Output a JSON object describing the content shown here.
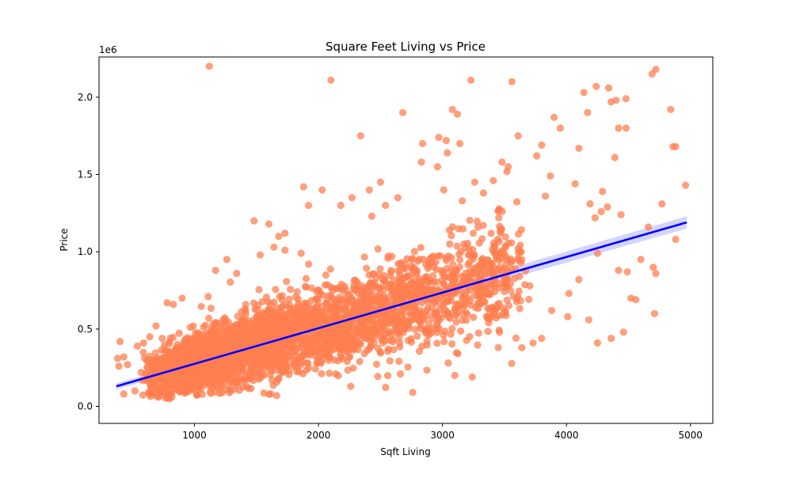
{
  "chart_data": {
    "type": "scatter",
    "title": "Square Feet Living vs Price",
    "xlabel": "Sqft Living",
    "ylabel": "Price",
    "y_offset_label": "1e6",
    "xlim": [
      230,
      5180
    ],
    "ylim": [
      -0.11,
      2.26
    ],
    "x_ticks": [
      1000,
      2000,
      3000,
      4000,
      5000
    ],
    "x_tick_labels": [
      "1000",
      "2000",
      "3000",
      "4000",
      "5000"
    ],
    "y_ticks": [
      0.0,
      0.5,
      1.0,
      1.5,
      2.0
    ],
    "y_tick_labels": [
      "0.0",
      "0.5",
      "1.0",
      "1.5",
      "2.0"
    ],
    "grid": false,
    "legend": "none",
    "point_color": "#ff7f50",
    "line_color": "#0000ff",
    "band_color": "#b0b0ff",
    "regression": {
      "x": [
        370,
        4970
      ],
      "y": [
        0.13,
        1.19
      ],
      "ci_halfwidth_at_ends": [
        0.02,
        0.04
      ]
    },
    "points": {
      "x": [
        1120,
        2100,
        3230,
        3560,
        4690,
        4720,
        4840,
        4140,
        4240,
        4340,
        4400,
        4480,
        4360,
        4420,
        2680,
        3080,
        3120,
        2340,
        3610,
        2970,
        3030,
        2840,
        3040,
        3140,
        2960,
        3800,
        3900,
        3950,
        4100,
        4170,
        4390,
        4480,
        4860,
        4880,
        4960,
        4770,
        4660,
        4880,
        4600,
        4700,
        4720,
        4520,
        4420,
        4180,
        4010,
        4250,
        4360,
        4460,
        4490,
        4560,
        4710,
        4250,
        4100,
        4020,
        3880,
        3460,
        3100,
        2760,
        2660,
        3240,
        3800,
        3730,
        3640,
        1110,
        1920,
        2060,
        2140,
        2260,
        1600,
        1480,
        1640,
        1860,
        1730,
        1530,
        1420,
        1280,
        1320,
        1190,
        960,
        930,
        880,
        810,
        800,
        730,
        650,
        610,
        570,
        520,
        460,
        430,
        390,
        430,
        380,
        400,
        540,
        590,
        640,
        690,
        780,
        830,
        900,
        1170,
        1260,
        1340,
        1880,
        2030,
        2180,
        2430,
        2640,
        2540,
        2830,
        3010,
        3160,
        3260,
        3330,
        3410,
        3530,
        3760,
        3830,
        3870,
        4070,
        4190,
        4280,
        4290,
        4230,
        4330,
        4440,
        3520,
        3480,
        2500,
        2410,
        2270,
        1920,
        1730,
        1680
      ],
      "y": [
        2.2,
        2.11,
        2.11,
        2.1,
        2.15,
        2.18,
        1.92,
        2.03,
        2.07,
        2.06,
        1.98,
        1.99,
        1.97,
        1.8,
        1.9,
        1.92,
        1.89,
        1.75,
        1.75,
        1.74,
        1.72,
        1.7,
        1.64,
        1.7,
        1.55,
        1.69,
        1.87,
        1.8,
        1.67,
        1.9,
        1.61,
        1.8,
        1.68,
        1.68,
        1.43,
        1.31,
        1.16,
        1.08,
        0.95,
        0.9,
        0.86,
        0.7,
        0.88,
        0.56,
        0.58,
        0.41,
        0.44,
        0.48,
        0.87,
        0.69,
        0.6,
        0.99,
        0.82,
        0.73,
        0.62,
        0.48,
        0.2,
        0.09,
        0.21,
        0.19,
        0.44,
        0.41,
        0.38,
        0.71,
        0.92,
        0.85,
        0.21,
        0.13,
        1.18,
        1.2,
        1.03,
        0.99,
        1.01,
        0.98,
        0.13,
        0.15,
        0.11,
        0.12,
        0.22,
        0.09,
        0.19,
        0.2,
        0.05,
        0.12,
        0.16,
        0.17,
        0.22,
        0.1,
        0.27,
        0.08,
        0.26,
        0.32,
        0.31,
        0.42,
        0.39,
        0.41,
        0.45,
        0.52,
        0.67,
        0.66,
        0.7,
        0.88,
        0.95,
        0.86,
        1.42,
        1.4,
        1.3,
        1.23,
        1.35,
        1.3,
        1.58,
        1.4,
        1.33,
        1.45,
        1.38,
        1.46,
        1.55,
        1.62,
        1.36,
        1.49,
        1.44,
        1.31,
        1.26,
        1.39,
        1.22,
        1.29,
        1.24,
        1.52,
        1.58,
        1.45,
        1.4,
        1.35,
        1.3,
        1.12,
        1.1
      ],
      "cluster": {
        "description": "dense body of points following the regression line",
        "x_range": [
          700,
          4000
        ],
        "n": 3200
      }
    }
  }
}
